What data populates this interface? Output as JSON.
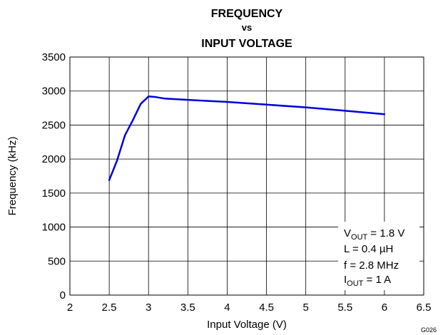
{
  "chart_data": {
    "type": "line",
    "title_lines": [
      "FREQUENCY",
      "vs",
      "INPUT VOLTAGE"
    ],
    "xlabel": "Input Voltage (V)",
    "ylabel": "Frequency (kHz)",
    "xlim": [
      2,
      6.5
    ],
    "ylim": [
      0,
      3500
    ],
    "xticks": [
      2,
      2.5,
      3,
      3.5,
      4,
      4.5,
      5,
      5.5,
      6,
      6.5
    ],
    "yticks": [
      0,
      500,
      1000,
      1500,
      2000,
      2500,
      3000,
      3500
    ],
    "grid": true,
    "series": [
      {
        "color": "#0000dd",
        "x": [
          2.5,
          2.6,
          2.7,
          2.8,
          2.9,
          3.0,
          3.1,
          3.2,
          3.5,
          4.0,
          4.5,
          5.0,
          5.5,
          6.0
        ],
        "y": [
          1690,
          1980,
          2350,
          2570,
          2810,
          2920,
          2910,
          2890,
          2870,
          2840,
          2800,
          2760,
          2710,
          2660
        ]
      }
    ],
    "annotation": {
      "line1": {
        "pre": "V",
        "sub": "OUT",
        "post": " = 1.8 V"
      },
      "line2": "L = 0.4 µH",
      "line3": "f = 2.8 MHz",
      "line4": {
        "pre": "I",
        "sub": "OUT",
        "post": " = 1 A"
      }
    },
    "figure_code": "G026"
  }
}
